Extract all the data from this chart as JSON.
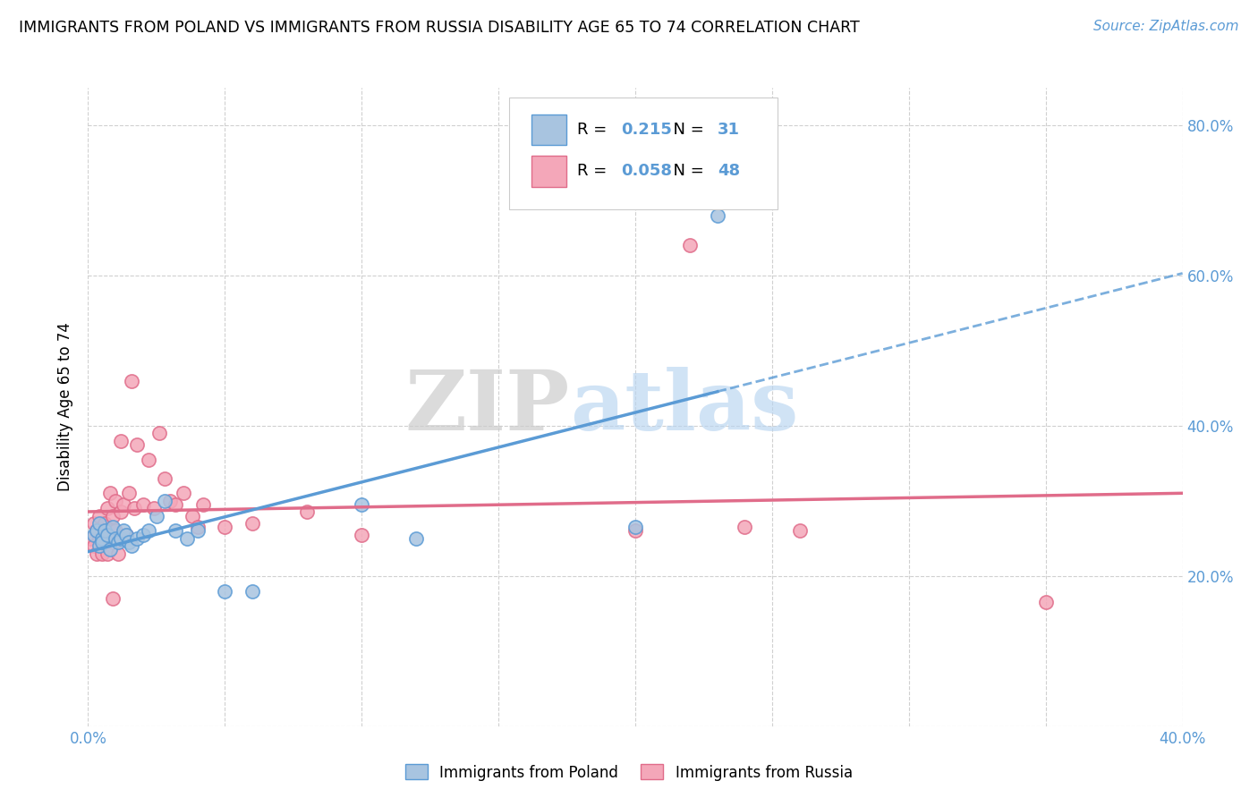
{
  "title": "IMMIGRANTS FROM POLAND VS IMMIGRANTS FROM RUSSIA DISABILITY AGE 65 TO 74 CORRELATION CHART",
  "source": "Source: ZipAtlas.com",
  "ylabel": "Disability Age 65 to 74",
  "xlim": [
    0.0,
    0.4
  ],
  "ylim": [
    0.0,
    0.85
  ],
  "y_ticks_right": [
    0.2,
    0.4,
    0.6,
    0.8
  ],
  "poland_color": "#a8c4e0",
  "poland_color_dark": "#5b9bd5",
  "russia_color": "#f4a7b9",
  "russia_color_dark": "#e06c8a",
  "R_poland": 0.215,
  "N_poland": 31,
  "R_russia": 0.058,
  "N_russia": 48,
  "poland_scatter_x": [
    0.002,
    0.003,
    0.004,
    0.004,
    0.005,
    0.005,
    0.006,
    0.007,
    0.008,
    0.009,
    0.01,
    0.011,
    0.012,
    0.013,
    0.014,
    0.015,
    0.016,
    0.018,
    0.02,
    0.022,
    0.025,
    0.028,
    0.032,
    0.036,
    0.04,
    0.05,
    0.06,
    0.1,
    0.12,
    0.2,
    0.23
  ],
  "poland_scatter_y": [
    0.255,
    0.26,
    0.24,
    0.27,
    0.25,
    0.245,
    0.26,
    0.255,
    0.235,
    0.265,
    0.25,
    0.245,
    0.25,
    0.26,
    0.255,
    0.245,
    0.24,
    0.25,
    0.255,
    0.26,
    0.28,
    0.3,
    0.26,
    0.25,
    0.26,
    0.18,
    0.18,
    0.295,
    0.25,
    0.265,
    0.68
  ],
  "russia_scatter_x": [
    0.001,
    0.002,
    0.002,
    0.003,
    0.003,
    0.004,
    0.004,
    0.005,
    0.005,
    0.006,
    0.006,
    0.007,
    0.007,
    0.008,
    0.008,
    0.009,
    0.009,
    0.01,
    0.01,
    0.011,
    0.012,
    0.012,
    0.013,
    0.014,
    0.015,
    0.016,
    0.017,
    0.018,
    0.02,
    0.022,
    0.024,
    0.026,
    0.028,
    0.03,
    0.032,
    0.035,
    0.038,
    0.04,
    0.042,
    0.05,
    0.06,
    0.08,
    0.1,
    0.2,
    0.22,
    0.24,
    0.26,
    0.35
  ],
  "russia_scatter_y": [
    0.25,
    0.27,
    0.24,
    0.26,
    0.23,
    0.28,
    0.25,
    0.26,
    0.23,
    0.27,
    0.25,
    0.29,
    0.23,
    0.26,
    0.31,
    0.17,
    0.28,
    0.26,
    0.3,
    0.23,
    0.285,
    0.38,
    0.295,
    0.255,
    0.31,
    0.46,
    0.29,
    0.375,
    0.295,
    0.355,
    0.29,
    0.39,
    0.33,
    0.3,
    0.295,
    0.31,
    0.28,
    0.265,
    0.295,
    0.265,
    0.27,
    0.285,
    0.255,
    0.26,
    0.64,
    0.265,
    0.26,
    0.165
  ],
  "watermark_zip": "ZIP",
  "watermark_atlas": "atlas",
  "background_color": "#ffffff",
  "grid_color": "#d0d0d0"
}
